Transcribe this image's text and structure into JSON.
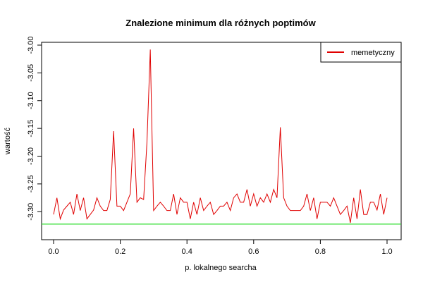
{
  "chart_data": {
    "type": "line",
    "title": "Znalezione minimum dla różnych poptimów",
    "xlabel": "p. lokalnego searcha",
    "ylabel": "wartość",
    "xlim": [
      0,
      1
    ],
    "ylim": [
      -3.32,
      -3.0
    ],
    "x_ticks": [
      0,
      0.2,
      0.4,
      0.6,
      0.8,
      1
    ],
    "x_tick_labels": [
      "0.0",
      "0.2",
      "0.4",
      "0.6",
      "0.8",
      "1.0"
    ],
    "y_ticks": [
      -3.0,
      -3.05,
      -3.1,
      -3.15,
      -3.2,
      -3.25,
      -3.3
    ],
    "y_tick_labels": [
      "-3.00",
      "-3.05",
      "-3.10",
      "-3.15",
      "-3.20",
      "-3.25",
      "-3.30"
    ],
    "grid": false,
    "legend_position": "top-right",
    "series": [
      {
        "name": "memetyczny",
        "color": "#e00000",
        "x": [
          0.0,
          0.01,
          0.02,
          0.03,
          0.04,
          0.05,
          0.06,
          0.07,
          0.08,
          0.09,
          0.1,
          0.11,
          0.12,
          0.13,
          0.14,
          0.15,
          0.16,
          0.17,
          0.18,
          0.19,
          0.2,
          0.21,
          0.22,
          0.23,
          0.24,
          0.25,
          0.26,
          0.27,
          0.28,
          0.29,
          0.3,
          0.31,
          0.32,
          0.33,
          0.34,
          0.35,
          0.36,
          0.37,
          0.38,
          0.39,
          0.4,
          0.41,
          0.42,
          0.43,
          0.44,
          0.45,
          0.46,
          0.47,
          0.48,
          0.49,
          0.5,
          0.51,
          0.52,
          0.53,
          0.54,
          0.55,
          0.56,
          0.57,
          0.58,
          0.59,
          0.6,
          0.61,
          0.62,
          0.63,
          0.64,
          0.65,
          0.66,
          0.67,
          0.68,
          0.69,
          0.7,
          0.71,
          0.72,
          0.73,
          0.74,
          0.75,
          0.76,
          0.77,
          0.78,
          0.79,
          0.8,
          0.81,
          0.82,
          0.83,
          0.84,
          0.85,
          0.86,
          0.87,
          0.88,
          0.89,
          0.9,
          0.91,
          0.92,
          0.93,
          0.94,
          0.95,
          0.96,
          0.97,
          0.98,
          0.99,
          1.0
        ],
        "values": [
          -3.305,
          -3.275,
          -3.313,
          -3.297,
          -3.29,
          -3.283,
          -3.305,
          -3.268,
          -3.298,
          -3.275,
          -3.313,
          -3.305,
          -3.297,
          -3.275,
          -3.29,
          -3.298,
          -3.298,
          -3.278,
          -3.155,
          -3.29,
          -3.29,
          -3.298,
          -3.283,
          -3.268,
          -3.15,
          -3.283,
          -3.275,
          -3.278,
          -3.175,
          -3.008,
          -3.298,
          -3.29,
          -3.283,
          -3.29,
          -3.298,
          -3.298,
          -3.268,
          -3.305,
          -3.275,
          -3.283,
          -3.283,
          -3.313,
          -3.283,
          -3.305,
          -3.275,
          -3.298,
          -3.29,
          -3.283,
          -3.305,
          -3.298,
          -3.29,
          -3.29,
          -3.283,
          -3.298,
          -3.275,
          -3.268,
          -3.283,
          -3.283,
          -3.26,
          -3.29,
          -3.268,
          -3.29,
          -3.275,
          -3.283,
          -3.268,
          -3.283,
          -3.26,
          -3.275,
          -3.148,
          -3.275,
          -3.29,
          -3.298,
          -3.298,
          -3.298,
          -3.298,
          -3.29,
          -3.268,
          -3.298,
          -3.275,
          -3.313,
          -3.283,
          -3.283,
          -3.283,
          -3.29,
          -3.275,
          -3.29,
          -3.305,
          -3.298,
          -3.29,
          -3.32,
          -3.275,
          -3.313,
          -3.26,
          -3.305,
          -3.305,
          -3.283,
          -3.283,
          -3.297,
          -3.268,
          -3.305,
          -3.275
        ]
      }
    ],
    "reference_line": {
      "y": -3.3224,
      "color": "#33dd33"
    }
  }
}
